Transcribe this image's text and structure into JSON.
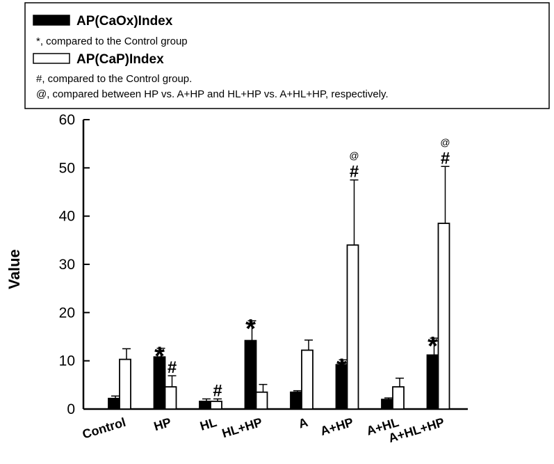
{
  "legend": {
    "entries": [
      {
        "name": "AP(CaOx)Index",
        "note": "*, compared to the Control group",
        "swatch_color": "#000000"
      },
      {
        "name": "AP(CaP)Index",
        "note": "#, compared to the Control group.",
        "swatch_color": "#ffffff"
      }
    ],
    "extra_note": "@, compared between HP vs. A+HP and HL+HP vs. A+HL+HP, respectively."
  },
  "chart_data": {
    "type": "bar",
    "ylabel": "Value",
    "xlabel": "",
    "ylim": [
      0,
      60
    ],
    "yticks": [
      "0",
      "10",
      "20",
      "30",
      "40",
      "50",
      "60"
    ],
    "categories": [
      "Control",
      "HP",
      "HL",
      "HL+HP",
      "A",
      "A+HP",
      "A+HL",
      "A+HL+HP"
    ],
    "series": [
      {
        "name": "AP(CaOx)Index",
        "color": "#000000",
        "values": [
          2.2,
          10.8,
          1.6,
          14.2,
          3.5,
          9.2,
          2.0,
          11.2
        ],
        "errors": [
          0.5,
          1.8,
          0.5,
          4.1,
          0.3,
          1.0,
          0.3,
          3.5
        ],
        "markers": [
          "",
          "*",
          "",
          "*",
          "",
          "*",
          "",
          "*"
        ]
      },
      {
        "name": "AP(CaP)Index",
        "color": "#ffffff",
        "values": [
          10.3,
          4.6,
          1.6,
          3.5,
          12.2,
          34.0,
          4.6,
          38.5
        ],
        "errors": [
          2.2,
          2.3,
          0.5,
          1.6,
          2.1,
          13.5,
          1.8,
          11.8
        ],
        "markers": [
          "",
          "#",
          "#",
          "",
          "",
          "#",
          "",
          "#"
        ],
        "top_markers": [
          "",
          "",
          "",
          "",
          "",
          "@",
          "",
          "@"
        ]
      }
    ]
  }
}
